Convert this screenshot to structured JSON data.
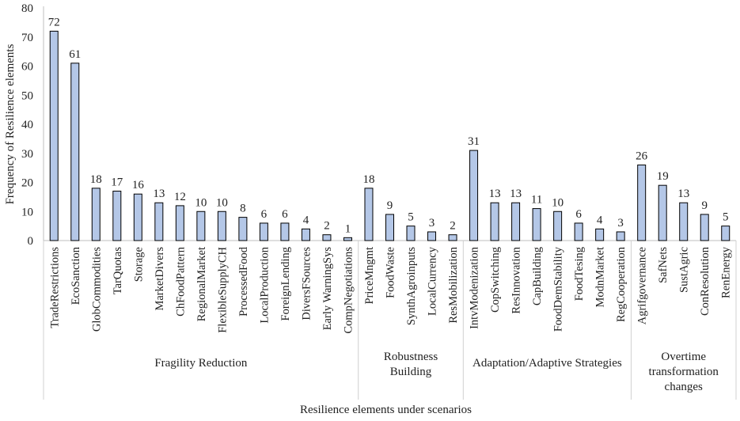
{
  "chart_data": {
    "type": "bar",
    "title": "",
    "xlabel": "Resilience elements under scenarios",
    "ylabel": "Frequency of Resilience elements",
    "ylim": [
      0,
      80
    ],
    "yticks": [
      0,
      10,
      20,
      30,
      40,
      50,
      60,
      70,
      80
    ],
    "grid": false,
    "legend": "none",
    "bar_color": "#b4c7e7",
    "bar_edge_color": "#000000",
    "categories": [
      "TradeRestrictions",
      "EcoSanction",
      "GlobCommodities",
      "TarQuotas",
      "Storage",
      "MarketDivers",
      "ChFoodPattern",
      "RegionalMarket",
      "FlexibleSupplyCH",
      "ProcessedFood",
      "LocalProduction",
      "ForeignLending",
      "DiversFSources",
      "Early WarningSys",
      "CompNegotiations",
      "PriceMngmt",
      "FoodWaste",
      "SynthAgroinputs",
      "LocalCurrency",
      "ResMobilization",
      "IntvModenization",
      "CopSwitching",
      "ResInnovation",
      "CapBuilding",
      "FoodDemStability",
      "FoodTesing",
      "ModnMarket",
      "RegCooperation",
      "Agrifgovernance",
      "SafNets",
      "SustAgric",
      "ConResolution",
      "RenEnergy"
    ],
    "values": [
      72,
      61,
      18,
      17,
      16,
      13,
      12,
      10,
      10,
      8,
      6,
      6,
      4,
      2,
      1,
      18,
      9,
      5,
      3,
      2,
      31,
      13,
      13,
      11,
      10,
      6,
      4,
      3,
      26,
      19,
      13,
      9,
      5
    ],
    "groups": [
      {
        "lines": [
          "Fragility Reduction"
        ],
        "start": 0,
        "end": 14
      },
      {
        "lines": [
          "Robustness",
          "Building"
        ],
        "start": 15,
        "end": 19
      },
      {
        "lines": [
          "Adaptation/Adaptive Strategies"
        ],
        "start": 20,
        "end": 27
      },
      {
        "lines": [
          "Overtime",
          "transformation",
          "changes"
        ],
        "start": 28,
        "end": 32
      }
    ]
  }
}
